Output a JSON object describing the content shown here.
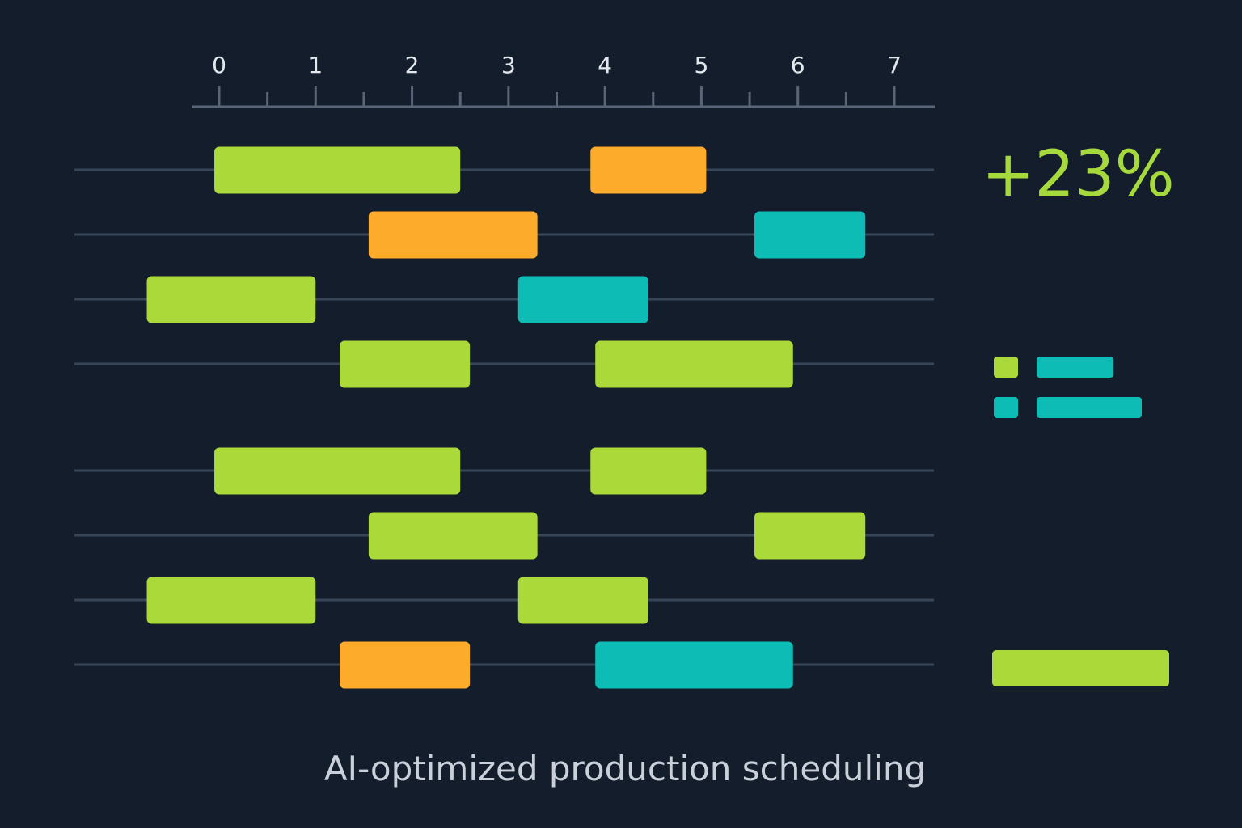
{
  "caption": "AI-optimized production scheduling",
  "kpi": "+23%",
  "colors": {
    "background": "#131d2b",
    "axis": "#5a6678",
    "lane": "#39465a",
    "green": "#abd93a",
    "orange": "#fcab2a",
    "teal": "#0dbdb5"
  },
  "chart_data": {
    "type": "gantt",
    "x": [
      0,
      1,
      2,
      3,
      4,
      5,
      6,
      7
    ],
    "xlim": [
      -1.5,
      7.4
    ],
    "tick_step": 0.5,
    "lanes": [
      {
        "tasks": [
          {
            "start": -0.05,
            "end": 2.5,
            "color": "green"
          },
          {
            "start": 3.85,
            "end": 5.05,
            "color": "orange"
          }
        ]
      },
      {
        "tasks": [
          {
            "start": 1.55,
            "end": 3.3,
            "color": "orange"
          },
          {
            "start": 5.55,
            "end": 6.7,
            "color": "teal"
          }
        ]
      },
      {
        "tasks": [
          {
            "start": -0.75,
            "end": 1.0,
            "color": "green"
          },
          {
            "start": 3.1,
            "end": 4.45,
            "color": "teal"
          }
        ]
      },
      {
        "tasks": [
          {
            "start": 1.25,
            "end": 2.6,
            "color": "green"
          },
          {
            "start": 3.9,
            "end": 5.95,
            "color": "green"
          }
        ]
      },
      {
        "tasks": [
          {
            "start": -0.05,
            "end": 2.5,
            "color": "green"
          },
          {
            "start": 3.85,
            "end": 5.05,
            "color": "green"
          }
        ]
      },
      {
        "tasks": [
          {
            "start": 1.55,
            "end": 3.3,
            "color": "green"
          },
          {
            "start": 5.55,
            "end": 6.7,
            "color": "green"
          }
        ]
      },
      {
        "tasks": [
          {
            "start": -0.75,
            "end": 1.0,
            "color": "green"
          },
          {
            "start": 3.1,
            "end": 4.45,
            "color": "green"
          }
        ]
      },
      {
        "tasks": [
          {
            "start": 1.25,
            "end": 2.6,
            "color": "orange"
          },
          {
            "start": 3.9,
            "end": 5.95,
            "color": "teal"
          }
        ]
      }
    ],
    "legend": {
      "placement": "right",
      "entries": [
        {
          "color": "green"
        },
        {
          "color": "teal"
        }
      ]
    },
    "summary_bar": {
      "color": "green"
    },
    "grid": false
  }
}
